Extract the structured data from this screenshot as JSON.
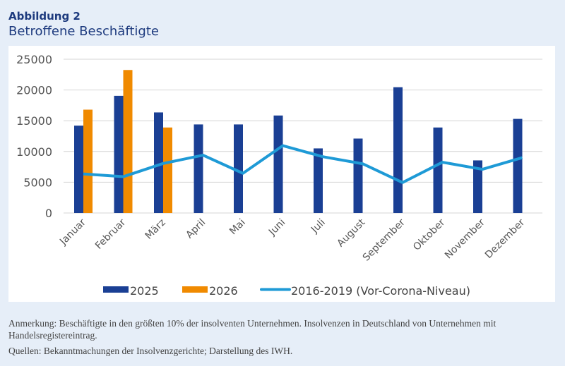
{
  "figure_label": "Abbildung 2",
  "title": "Betroffene Beschäftigte",
  "chart_data": {
    "type": "bar",
    "title": "Betroffene Beschäftigte",
    "categories": [
      "Januar",
      "Februar",
      "März",
      "April",
      "Mai",
      "Juni",
      "Juli",
      "August",
      "September",
      "Oktober",
      "November",
      "Dezember"
    ],
    "series": [
      {
        "name": "2025",
        "type": "bar",
        "color": "#1a3f94",
        "values": [
          14200,
          19050,
          16350,
          14400,
          14400,
          15850,
          10500,
          12100,
          20450,
          13900,
          8550,
          15300
        ]
      },
      {
        "name": "2026",
        "type": "bar",
        "color": "#f08a00",
        "values": [
          16800,
          23250,
          13900,
          null,
          null,
          null,
          null,
          null,
          null,
          null,
          null,
          null
        ]
      },
      {
        "name": "2016-2019 (Vor-Corona-Niveau)",
        "type": "line",
        "color": "#1e9ad6",
        "values": [
          6350,
          5900,
          8050,
          9400,
          6450,
          10950,
          9150,
          8000,
          4950,
          8250,
          7100,
          9000
        ]
      }
    ],
    "ylim": [
      0,
      25000
    ],
    "yticks": [
      0,
      5000,
      10000,
      15000,
      20000,
      25000
    ],
    "grid": true,
    "legend": "bottom"
  },
  "notes": {
    "anmerkung": "Anmerkung: Beschäftigte in den größten 10% der insolventen Unternehmen. Insolvenzen in Deutschland von Unternehmen mit Handelsregistereintrag.",
    "quellen": "Quellen: Bekanntmachungen der Insolvenzgerichte; Darstellung des IWH."
  }
}
